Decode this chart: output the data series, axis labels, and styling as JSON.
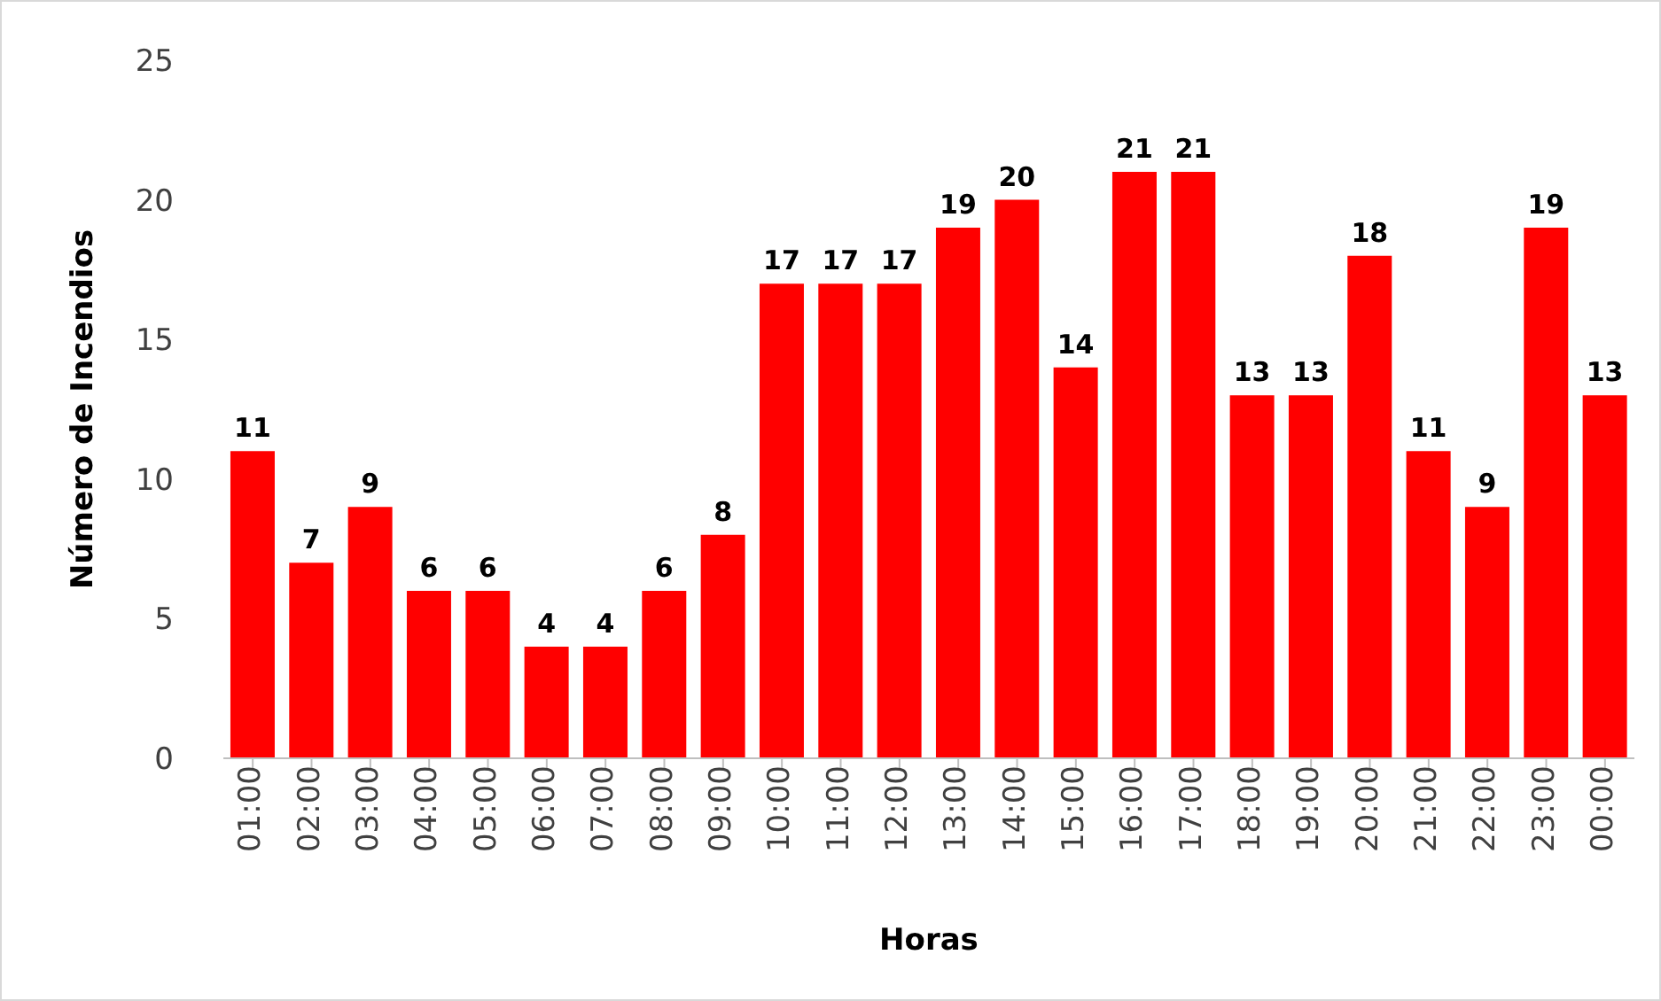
{
  "chart_data": {
    "type": "bar",
    "xlabel": "Horas",
    "ylabel": "Número de Incendios",
    "categories": [
      "01:00",
      "02:00",
      "03:00",
      "04:00",
      "05:00",
      "06:00",
      "07:00",
      "08:00",
      "09:00",
      "10:00",
      "11:00",
      "12:00",
      "13:00",
      "14:00",
      "15:00",
      "16:00",
      "17:00",
      "18:00",
      "19:00",
      "20:00",
      "21:00",
      "22:00",
      "23:00",
      "00:00"
    ],
    "values": [
      11,
      7,
      9,
      6,
      6,
      4,
      4,
      6,
      8,
      17,
      17,
      17,
      19,
      20,
      14,
      21,
      21,
      13,
      13,
      18,
      11,
      9,
      19,
      13
    ],
    "color": "#ff0000",
    "ylim": [
      0,
      25
    ],
    "yticks": [
      0,
      5,
      10,
      15,
      20,
      25
    ],
    "data_labels": true,
    "grid": false,
    "legend": false
  }
}
